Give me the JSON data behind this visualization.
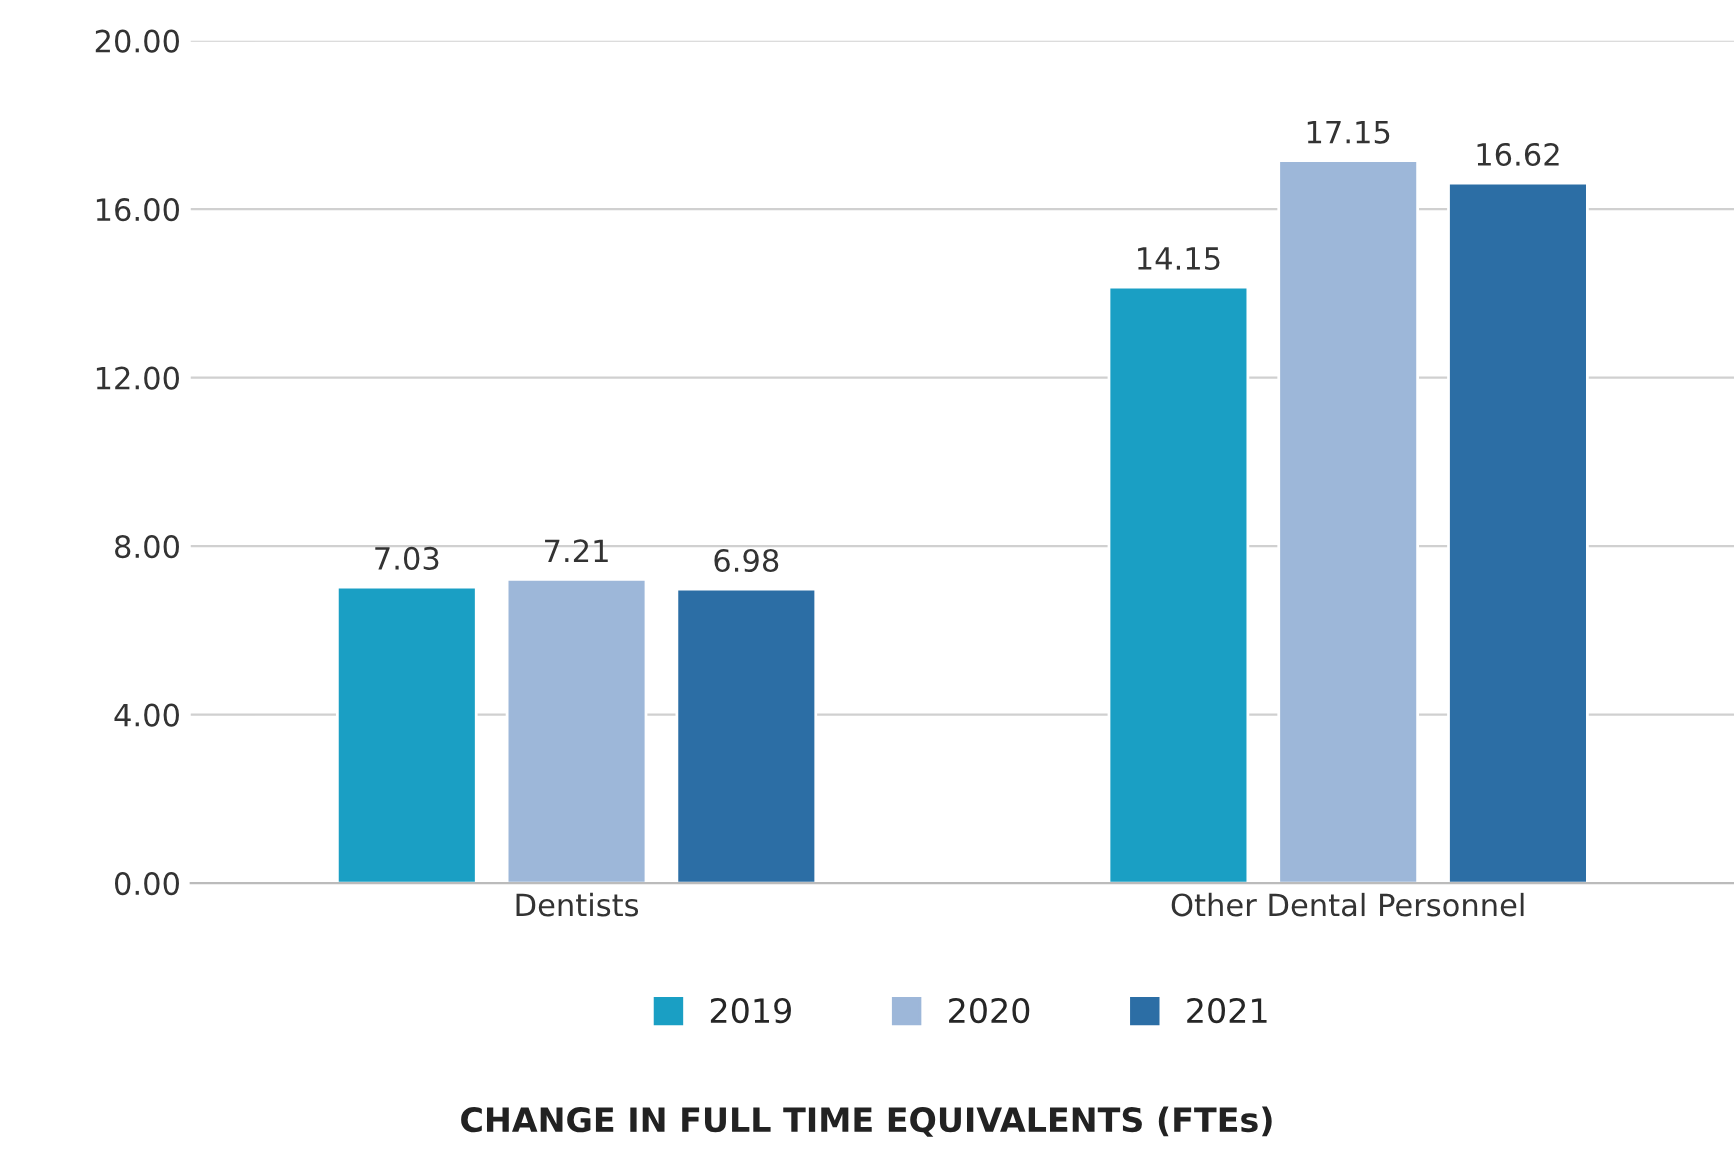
{
  "chart_data": {
    "type": "bar",
    "title": "CHANGE IN FULL TIME EQUIVALENTS (FTEs)",
    "categories": [
      "Dentists",
      "Other Dental Personnel"
    ],
    "series": [
      {
        "name": "2019",
        "color": "#1a9fc4",
        "values": [
          7.03,
          14.15
        ]
      },
      {
        "name": "2020",
        "color": "#9db7d9",
        "values": [
          7.21,
          17.15
        ]
      },
      {
        "name": "2021",
        "color": "#2c6ea5",
        "values": [
          6.98,
          16.62
        ]
      }
    ],
    "ylim": [
      0,
      20
    ],
    "yticks": [
      {
        "value": 0,
        "label": "0.00"
      },
      {
        "value": 4,
        "label": "4.00"
      },
      {
        "value": 8,
        "label": "8.00"
      },
      {
        "value": 12,
        "label": "12.00"
      },
      {
        "value": 16,
        "label": "16.00"
      },
      {
        "value": 20,
        "label": "20.00"
      }
    ],
    "grid": "y",
    "legend": "bottom",
    "data_labels": true
  }
}
